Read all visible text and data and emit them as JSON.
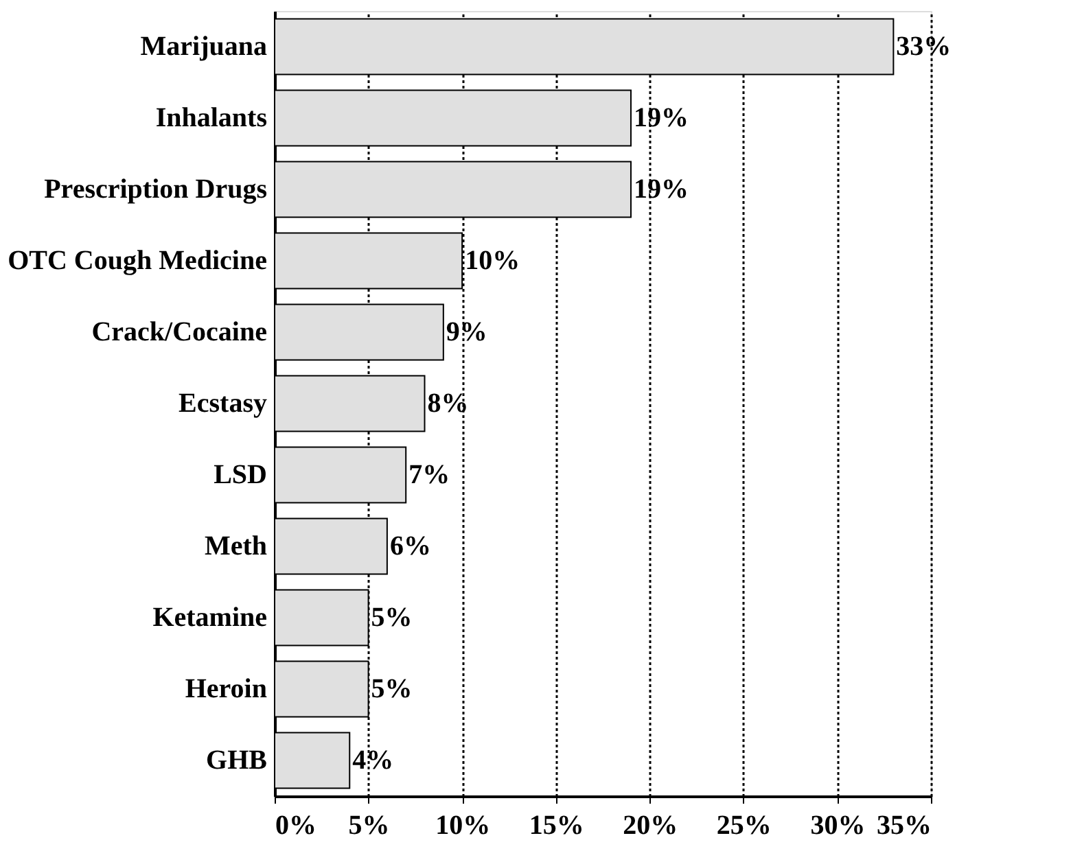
{
  "chart_data": {
    "type": "bar",
    "orientation": "horizontal",
    "categories": [
      "Marijuana",
      "Inhalants",
      "Prescription Drugs",
      "OTC Cough Medicine",
      "Crack/Cocaine",
      "Ecstasy",
      "LSD",
      "Meth",
      "Ketamine",
      "Heroin",
      "GHB"
    ],
    "values": [
      33,
      19,
      19,
      10,
      9,
      8,
      7,
      6,
      5,
      5,
      4
    ],
    "value_labels": [
      "33%",
      "19%",
      "19%",
      "10%",
      "9%",
      "8%",
      "7%",
      "6%",
      "5%",
      "5%",
      "4%"
    ],
    "color": "#e0e0e0",
    "xlim": [
      0,
      35
    ],
    "xticks": [
      {
        "value": 0,
        "label": "0%"
      },
      {
        "value": 5,
        "label": "5%"
      },
      {
        "value": 10,
        "label": "10%"
      },
      {
        "value": 15,
        "label": "15%"
      },
      {
        "value": 20,
        "label": "20%"
      },
      {
        "value": 25,
        "label": "25%"
      },
      {
        "value": 30,
        "label": "30%"
      },
      {
        "value": 35,
        "label": "35%"
      }
    ],
    "grid": "x"
  }
}
